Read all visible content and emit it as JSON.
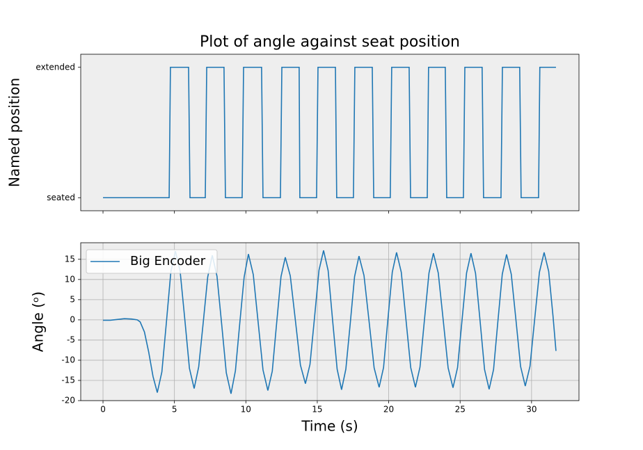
{
  "chart_data": [
    {
      "type": "line",
      "title": "Plot of angle against seat position",
      "y_label": "Named position",
      "xlim": [
        -1.56,
        33.32
      ],
      "xticks": [
        0,
        5,
        10,
        15,
        20,
        25,
        30
      ],
      "ylim": [
        -0.1,
        1.1
      ],
      "yticks": [
        {
          "value": 0,
          "label": "seated"
        },
        {
          "value": 1,
          "label": "extended"
        }
      ],
      "grid": false,
      "series": [
        {
          "name": null,
          "color": "#1f77b4",
          "x": [
            0,
            4.63,
            4.72,
            5.99,
            6.09,
            7.16,
            7.26,
            8.47,
            8.57,
            9.74,
            9.84,
            11.1,
            11.2,
            12.42,
            12.52,
            13.73,
            13.78,
            14.95,
            15.05,
            16.27,
            16.36,
            17.53,
            17.63,
            18.85,
            18.95,
            20.11,
            20.21,
            21.43,
            21.53,
            22.7,
            22.79,
            23.96,
            24.06,
            25.23,
            25.33,
            26.54,
            26.64,
            27.86,
            27.96,
            29.17,
            29.27,
            30.49,
            30.58,
            31.71
          ],
          "values": [
            0,
            0,
            1,
            1,
            0,
            0,
            1,
            1,
            0,
            0,
            1,
            1,
            0,
            0,
            1,
            1,
            0,
            0,
            1,
            1,
            0,
            0,
            1,
            1,
            0,
            0,
            1,
            1,
            0,
            0,
            1,
            1,
            0,
            0,
            1,
            1,
            0,
            0,
            1,
            1,
            0,
            0,
            1,
            1
          ]
        }
      ]
    },
    {
      "type": "line",
      "y_label": "Angle (ᵒ)",
      "x_label": "Time (s)",
      "xlim": [
        -1.56,
        33.32
      ],
      "xticks": [
        0,
        5,
        10,
        15,
        20,
        25,
        30
      ],
      "ylim": [
        -20,
        19.1
      ],
      "yticks": [
        -20,
        -15,
        -10,
        -5,
        0,
        5,
        10,
        15
      ],
      "grid": true,
      "legend": "upper left",
      "series": [
        {
          "name": "Big Encoder",
          "color": "#1f77b4",
          "x": [
            0,
            0.5,
            1.0,
            1.5,
            2.0,
            2.4,
            2.6,
            2.9,
            3.2,
            3.5,
            3.8,
            4.12,
            4.44,
            4.75,
            5.07,
            5.4,
            5.73,
            6.05,
            6.38,
            6.7,
            7.02,
            7.33,
            7.65,
            7.98,
            8.31,
            8.63,
            8.96,
            9.27,
            9.57,
            9.88,
            10.18,
            10.52,
            10.86,
            11.2,
            11.54,
            11.85,
            12.15,
            12.46,
            12.76,
            13.11,
            13.47,
            13.82,
            14.17,
            14.49,
            14.81,
            15.12,
            15.44,
            15.76,
            16.07,
            16.39,
            16.7,
            17.0,
            17.31,
            17.61,
            17.92,
            18.27,
            18.63,
            18.98,
            19.33,
            19.64,
            19.94,
            20.25,
            20.55,
            20.88,
            21.21,
            21.54,
            21.87,
            22.19,
            22.5,
            22.82,
            23.13,
            23.47,
            23.82,
            24.16,
            24.5,
            24.82,
            25.13,
            25.45,
            25.76,
            26.08,
            26.4,
            26.71,
            27.03,
            27.34,
            27.64,
            27.95,
            28.25,
            28.58,
            28.91,
            29.23,
            29.56,
            29.89,
            30.22,
            30.55,
            30.88,
            31.2,
            31.5,
            31.71
          ],
          "values": [
            -0.1,
            -0.1,
            0.1,
            0.3,
            0.2,
            0,
            -0.5,
            -3,
            -8,
            -14,
            -18,
            -12.9,
            -0.5,
            11.9,
            17,
            12,
            0,
            -12,
            -17,
            -11.6,
            -0.5,
            10.6,
            16,
            10.8,
            -1.2,
            -13.1,
            -18.3,
            -12.6,
            -1,
            10.6,
            16.3,
            11.2,
            -0.6,
            -12.4,
            -17.5,
            -12.7,
            -1,
            10.7,
            15.5,
            10.9,
            -0.2,
            -11.2,
            -15.8,
            -11,
            0.7,
            12.3,
            17.2,
            12.2,
            0,
            -12.2,
            -17.3,
            -12.2,
            -0.8,
            10.7,
            15.8,
            11,
            -0.5,
            -11.9,
            -16.7,
            -11.8,
            0,
            11.8,
            16.7,
            11.8,
            0,
            -11.8,
            -16.7,
            -11.7,
            -0.1,
            11.6,
            16.5,
            11.6,
            -0.2,
            -11.9,
            -16.8,
            -11.8,
            -0.2,
            11.6,
            16.5,
            11.5,
            -0.4,
            -12.3,
            -17.2,
            -12.3,
            -0.5,
            11.3,
            16.2,
            11.3,
            -0.1,
            -11.5,
            -16.4,
            -11.5,
            0.2,
            11.8,
            16.7,
            12,
            1,
            -7.7
          ]
        }
      ]
    }
  ]
}
